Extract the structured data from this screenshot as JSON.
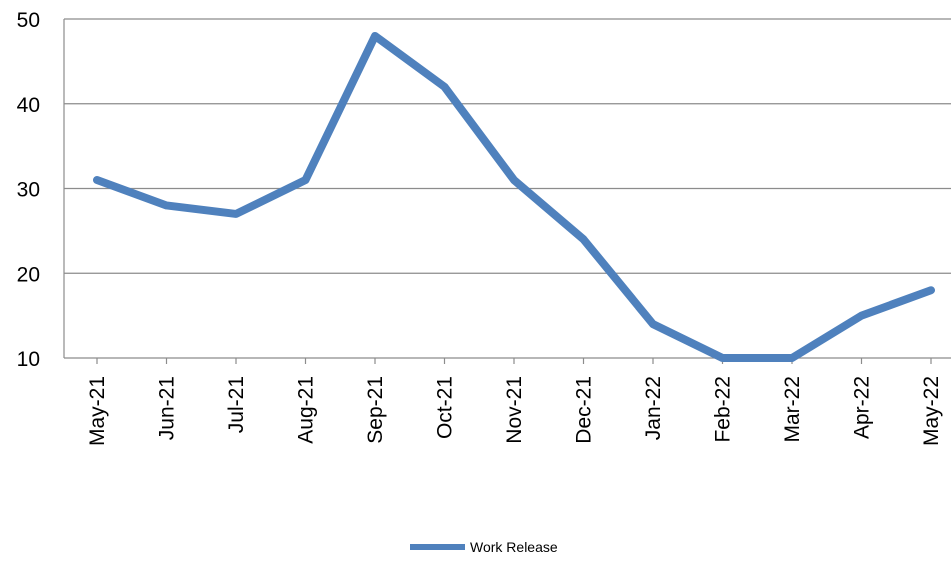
{
  "chart_data": {
    "type": "line",
    "categories": [
      "May-21",
      "Jun-21",
      "Jul-21",
      "Aug-21",
      "Sep-21",
      "Oct-21",
      "Nov-21",
      "Dec-21",
      "Jan-22",
      "Feb-22",
      "Mar-22",
      "Apr-22",
      "May-22"
    ],
    "series": [
      {
        "name": "Work Release",
        "values": [
          31,
          28,
          27,
          31,
          48,
          42,
          31,
          24,
          14,
          10,
          10,
          15,
          18
        ],
        "color": "#4F81BD"
      }
    ],
    "title": "",
    "xlabel": "",
    "ylabel": "",
    "ylim": [
      10,
      50
    ],
    "yticks": [
      10,
      20,
      30,
      40,
      50
    ],
    "grid": true,
    "legend_position": "bottom"
  }
}
